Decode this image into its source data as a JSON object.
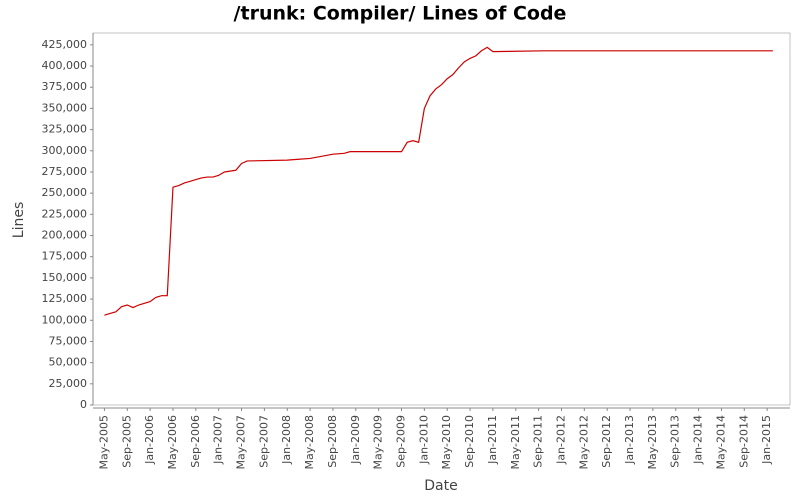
{
  "chart_data": {
    "type": "line",
    "title": "/trunk: Compiler/ Lines of Code",
    "x_label": "Date",
    "y_label": "Lines",
    "x": [
      "2005-05",
      "2005-06",
      "2005-07",
      "2005-08",
      "2005-09",
      "2005-10",
      "2005-11",
      "2005-12",
      "2006-01",
      "2006-02",
      "2006-03",
      "2006-04",
      "2006-05",
      "2006-06",
      "2006-07",
      "2006-08",
      "2006-09",
      "2006-10",
      "2006-11",
      "2006-12",
      "2007-01",
      "2007-02",
      "2007-03",
      "2007-04",
      "2007-05",
      "2007-06",
      "2008-01",
      "2008-03",
      "2008-05",
      "2008-09",
      "2008-11",
      "2008-12",
      "2009-09",
      "2009-10",
      "2009-11",
      "2009-12",
      "2010-01",
      "2010-02",
      "2010-03",
      "2010-04",
      "2010-05",
      "2010-06",
      "2010-07",
      "2010-08",
      "2010-09",
      "2010-10",
      "2010-11",
      "2010-12",
      "2011-01",
      "2011-10",
      "2015-02"
    ],
    "series": [
      {
        "name": "Lines",
        "color": "#cc0000",
        "values": [
          106000,
          108000,
          110000,
          116000,
          118000,
          115000,
          118000,
          120000,
          122000,
          127000,
          129000,
          129000,
          257000,
          259000,
          262000,
          264000,
          266000,
          268000,
          269000,
          269000,
          271000,
          275000,
          276000,
          277000,
          285000,
          288000,
          289000,
          290000,
          291000,
          296000,
          297000,
          299000,
          299000,
          310000,
          312000,
          310000,
          350000,
          365000,
          373000,
          378000,
          385000,
          390000,
          398000,
          405000,
          409000,
          412000,
          418000,
          422000,
          417000,
          418000,
          418000
        ]
      }
    ],
    "xlim": [
      "2005-03",
      "2015-05"
    ],
    "xticks": [
      {
        "value": "2005-05",
        "label": "May-2005"
      },
      {
        "value": "2005-09",
        "label": "Sep-2005"
      },
      {
        "value": "2006-01",
        "label": "Jan-2006"
      },
      {
        "value": "2006-05",
        "label": "May-2006"
      },
      {
        "value": "2006-09",
        "label": "Sep-2006"
      },
      {
        "value": "2007-01",
        "label": "Jan-2007"
      },
      {
        "value": "2007-05",
        "label": "May-2007"
      },
      {
        "value": "2007-09",
        "label": "Sep-2007"
      },
      {
        "value": "2008-01",
        "label": "Jan-2008"
      },
      {
        "value": "2008-05",
        "label": "May-2008"
      },
      {
        "value": "2008-09",
        "label": "Sep-2008"
      },
      {
        "value": "2009-01",
        "label": "Jan-2009"
      },
      {
        "value": "2009-05",
        "label": "May-2009"
      },
      {
        "value": "2009-09",
        "label": "Sep-2009"
      },
      {
        "value": "2010-01",
        "label": "Jan-2010"
      },
      {
        "value": "2010-05",
        "label": "May-2010"
      },
      {
        "value": "2010-09",
        "label": "Sep-2010"
      },
      {
        "value": "2011-01",
        "label": "Jan-2011"
      },
      {
        "value": "2011-05",
        "label": "May-2011"
      },
      {
        "value": "2011-09",
        "label": "Sep-2011"
      },
      {
        "value": "2012-01",
        "label": "Jan-2012"
      },
      {
        "value": "2012-05",
        "label": "May-2012"
      },
      {
        "value": "2012-09",
        "label": "Sep-2012"
      },
      {
        "value": "2013-01",
        "label": "Jan-2013"
      },
      {
        "value": "2013-05",
        "label": "May-2013"
      },
      {
        "value": "2013-09",
        "label": "Sep-2013"
      },
      {
        "value": "2014-01",
        "label": "Jan-2014"
      },
      {
        "value": "2014-05",
        "label": "May-2014"
      },
      {
        "value": "2014-09",
        "label": "Sep-2014"
      },
      {
        "value": "2015-01",
        "label": "Jan-2015"
      }
    ],
    "ylim": [
      0,
      439000
    ],
    "yticks": [
      0,
      {
        "value": 25000,
        "label": "25,000"
      },
      {
        "value": 50000,
        "label": "50,000"
      },
      {
        "value": 75000,
        "label": "75,000"
      },
      {
        "value": 100000,
        "label": "100,000"
      },
      {
        "value": 125000,
        "label": "125,000"
      },
      {
        "value": 150000,
        "label": "150,000"
      },
      {
        "value": 175000,
        "label": "175,000"
      },
      {
        "value": 200000,
        "label": "200,000"
      },
      {
        "value": 225000,
        "label": "225,000"
      },
      {
        "value": 250000,
        "label": "250,000"
      },
      {
        "value": 275000,
        "label": "275,000"
      },
      {
        "value": 300000,
        "label": "300,000"
      },
      {
        "value": 325000,
        "label": "325,000"
      },
      {
        "value": 350000,
        "label": "350,000"
      },
      {
        "value": 375000,
        "label": "375,000"
      },
      {
        "value": 400000,
        "label": "400,000"
      },
      {
        "value": 425000,
        "label": "425,000"
      }
    ]
  }
}
